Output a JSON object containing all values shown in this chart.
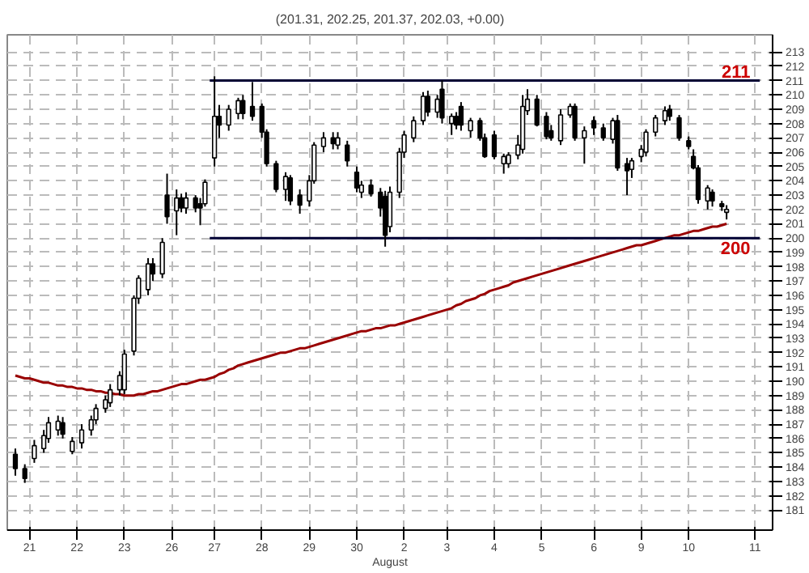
{
  "chart_data": {
    "type": "candlestick",
    "title": "(201.31, 202.25, 201.37, 202.03, +0.00)",
    "xlabel": "August",
    "categories": [
      null,
      null,
      null,
      "21",
      null,
      null,
      null,
      null,
      null,
      null,
      null,
      null,
      null,
      "22",
      null,
      null,
      null,
      null,
      null,
      null,
      null,
      null,
      null,
      "23",
      null,
      null,
      null,
      null,
      null,
      null,
      null,
      null,
      null,
      "26",
      null,
      null,
      null,
      null,
      null,
      null,
      null,
      null,
      "27",
      null,
      null,
      null,
      null,
      null,
      null,
      null,
      null,
      null,
      "28",
      null,
      null,
      null,
      null,
      null,
      null,
      null,
      null,
      null,
      "29",
      null,
      null,
      null,
      null,
      null,
      null,
      null,
      null,
      null,
      "30",
      null,
      null,
      null,
      null,
      null,
      null,
      null,
      null,
      null,
      "2",
      null,
      null,
      null,
      null,
      null,
      null,
      null,
      null,
      "3",
      null,
      null,
      null,
      null,
      null,
      null,
      null,
      null,
      null,
      "4",
      null,
      null,
      null,
      null,
      null,
      null,
      null,
      null,
      null,
      "5",
      null,
      null,
      null,
      null,
      null,
      null,
      null,
      null,
      null,
      null,
      "6",
      null,
      null,
      null,
      null,
      null,
      null,
      null,
      null,
      null,
      "9",
      null,
      null,
      null,
      null,
      null,
      null,
      null,
      null,
      null,
      "10",
      null,
      null,
      null,
      null,
      null,
      null,
      null,
      null,
      null,
      null,
      null,
      null,
      null,
      "11",
      null
    ],
    "ohlc": [
      [
        184.9,
        185.3,
        183.4,
        183.9
      ],
      null,
      [
        183.9,
        184.2,
        182.9,
        183.2
      ],
      null,
      [
        184.6,
        185.9,
        184.3,
        185.5
      ],
      null,
      [
        185.3,
        186.6,
        185.0,
        186.2
      ],
      [
        186.0,
        187.5,
        185.7,
        187.1
      ],
      null,
      [
        186.6,
        187.6,
        186.2,
        187.2
      ],
      [
        187.1,
        187.5,
        186.0,
        186.3
      ],
      null,
      [
        185.1,
        186.1,
        184.9,
        185.8
      ],
      null,
      [
        185.7,
        187.0,
        185.3,
        186.6
      ],
      null,
      [
        186.6,
        187.6,
        186.2,
        187.3
      ],
      [
        187.3,
        188.4,
        187.0,
        188.1
      ],
      null,
      [
        188.1,
        189.0,
        187.8,
        188.7
      ],
      [
        188.5,
        189.8,
        188.2,
        189.4
      ],
      null,
      [
        189.4,
        190.7,
        189.0,
        190.4
      ],
      [
        189.4,
        192.2,
        189.1,
        191.9
      ],
      null,
      [
        192.1,
        196.0,
        191.8,
        195.8
      ],
      [
        195.8,
        197.4,
        195.4,
        197.2
      ],
      null,
      [
        196.4,
        198.6,
        196.0,
        198.2
      ],
      [
        198.2,
        198.6,
        197.0,
        197.5
      ],
      null,
      [
        197.5,
        200.0,
        197.2,
        199.7
      ],
      [
        203.0,
        204.5,
        201.0,
        201.5
      ],
      null,
      [
        201.9,
        203.4,
        200.2,
        202.8
      ],
      [
        202.8,
        203.1,
        201.8,
        202.1
      ],
      [
        202.1,
        203.2,
        201.7,
        202.8
      ],
      null,
      [
        202.8,
        203.0,
        201.8,
        202.1
      ],
      [
        202.4,
        202.8,
        200.9,
        202.1
      ],
      [
        202.4,
        204.1,
        202.2,
        203.9
      ],
      null,
      [
        205.6,
        211.3,
        205.0,
        208.5
      ],
      [
        208.5,
        209.3,
        207.0,
        207.9
      ],
      null,
      [
        207.9,
        209.3,
        207.5,
        209.0
      ],
      null,
      [
        208.7,
        209.8,
        208.3,
        209.6
      ],
      [
        209.6,
        210.0,
        208.3,
        208.7
      ],
      null,
      [
        209.2,
        210.9,
        208.2,
        208.5
      ],
      null,
      [
        209.2,
        209.4,
        207.0,
        207.4
      ],
      [
        207.4,
        207.6,
        205.0,
        205.2
      ],
      null,
      [
        205.2,
        205.4,
        203.2,
        203.4
      ],
      null,
      [
        203.4,
        204.6,
        202.6,
        204.3
      ],
      [
        204.2,
        204.4,
        202.3,
        202.6
      ],
      null,
      [
        203.0,
        203.4,
        201.7,
        202.3
      ],
      null,
      [
        202.6,
        204.4,
        202.2,
        204.0
      ],
      [
        204.0,
        206.7,
        203.8,
        206.5
      ],
      null,
      [
        206.4,
        207.4,
        206.0,
        207.0
      ],
      null,
      [
        207.0,
        207.4,
        206.2,
        206.6
      ],
      [
        206.5,
        207.4,
        206.2,
        207.0
      ],
      null,
      [
        206.5,
        206.8,
        205.0,
        205.4
      ],
      null,
      [
        204.6,
        205.0,
        203.2,
        203.5
      ],
      [
        203.2,
        204.0,
        202.8,
        203.7
      ],
      null,
      [
        203.7,
        204.1,
        202.9,
        203.1
      ],
      null,
      [
        203.2,
        203.5,
        201.5,
        202.1
      ],
      [
        202.9,
        203.3,
        199.4,
        200.2
      ],
      [
        200.8,
        203.6,
        200.4,
        203.2
      ],
      null,
      [
        203.2,
        206.3,
        202.8,
        206.0
      ],
      [
        206.0,
        207.5,
        205.6,
        207.2
      ],
      null,
      [
        207.0,
        208.5,
        206.7,
        208.2
      ],
      null,
      [
        208.2,
        210.2,
        207.9,
        209.9
      ],
      [
        209.9,
        210.3,
        208.5,
        208.8
      ],
      null,
      [
        208.8,
        210.0,
        208.4,
        209.7
      ],
      [
        210.4,
        211.0,
        208.0,
        208.4
      ],
      null,
      [
        208.0,
        208.7,
        207.2,
        208.5
      ],
      [
        208.5,
        208.8,
        207.6,
        207.9
      ],
      [
        209.2,
        209.5,
        207.5,
        207.9
      ],
      null,
      [
        207.5,
        208.4,
        207.0,
        208.2
      ],
      null,
      [
        208.2,
        208.4,
        206.8,
        207.0
      ],
      [
        207.0,
        207.3,
        205.6,
        205.7
      ],
      null,
      [
        207.2,
        207.5,
        205.5,
        205.7
      ],
      null,
      [
        205.2,
        205.9,
        204.5,
        205.7
      ],
      [
        205.2,
        206.0,
        204.9,
        205.8
      ],
      null,
      [
        205.8,
        207.2,
        205.5,
        206.5
      ],
      [
        206.2,
        210.0,
        205.9,
        209.2
      ],
      [
        208.9,
        210.4,
        208.6,
        209.7
      ],
      null,
      [
        209.7,
        210.0,
        207.8,
        207.9
      ],
      null,
      [
        208.5,
        208.8,
        206.9,
        207.1
      ],
      [
        207.5,
        207.9,
        206.8,
        207.0
      ],
      null,
      [
        206.8,
        209.0,
        206.5,
        208.6
      ],
      null,
      [
        208.6,
        209.4,
        208.4,
        209.2
      ],
      [
        209.2,
        209.4,
        206.8,
        207.0
      ],
      null,
      [
        207.0,
        207.8,
        205.2,
        207.5
      ],
      null,
      [
        208.2,
        208.5,
        207.2,
        207.7
      ],
      null,
      [
        207.7,
        208.0,
        206.8,
        207.0
      ],
      null,
      [
        206.9,
        208.4,
        206.6,
        208.2
      ],
      [
        208.2,
        208.6,
        204.7,
        204.9
      ],
      null,
      [
        205.2,
        205.6,
        203.0,
        204.7
      ],
      [
        204.8,
        205.6,
        204.2,
        205.4
      ],
      null,
      [
        205.7,
        206.5,
        205.3,
        206.2
      ],
      [
        206.0,
        207.6,
        205.7,
        207.4
      ],
      null,
      [
        207.4,
        208.6,
        207.1,
        208.4
      ],
      null,
      [
        208.2,
        209.2,
        207.9,
        208.9
      ],
      [
        209.0,
        209.3,
        208.2,
        208.5
      ],
      null,
      [
        208.4,
        208.6,
        206.8,
        207.0
      ],
      null,
      [
        206.8,
        207.1,
        206.2,
        206.4
      ],
      [
        205.7,
        206.2,
        204.8,
        204.9
      ],
      [
        204.9,
        205.1,
        202.4,
        202.7
      ],
      null,
      [
        202.6,
        203.7,
        202.0,
        203.5
      ],
      [
        203.2,
        203.4,
        202.2,
        202.6
      ],
      null,
      [
        202.4,
        202.6,
        201.9,
        202.2
      ],
      [
        201.8,
        202.3,
        201.3,
        202.0
      ],
      null,
      null,
      null,
      null,
      null,
      null,
      null
    ],
    "series": [
      {
        "type": "line",
        "color": "#990000",
        "values": [
          190.4,
          190.3,
          190.2,
          190.2,
          190.1,
          190.0,
          189.9,
          189.9,
          189.8,
          189.7,
          189.7,
          189.6,
          189.6,
          189.5,
          189.5,
          189.4,
          189.4,
          189.3,
          189.3,
          189.2,
          189.2,
          189.1,
          189.1,
          189.0,
          189.0,
          189.0,
          189.1,
          189.1,
          189.2,
          189.3,
          189.3,
          189.4,
          189.5,
          189.6,
          189.7,
          189.8,
          189.8,
          189.9,
          190.0,
          190.1,
          190.1,
          190.2,
          190.3,
          190.5,
          190.6,
          190.8,
          190.9,
          191.1,
          191.2,
          191.3,
          191.4,
          191.5,
          191.6,
          191.7,
          191.8,
          191.9,
          192.0,
          192.0,
          192.1,
          192.2,
          192.3,
          192.3,
          192.4,
          192.5,
          192.6,
          192.7,
          192.8,
          192.9,
          193.0,
          193.1,
          193.2,
          193.3,
          193.4,
          193.5,
          193.5,
          193.6,
          193.7,
          193.7,
          193.8,
          193.9,
          193.9,
          194.0,
          194.1,
          194.2,
          194.3,
          194.4,
          194.5,
          194.6,
          194.7,
          194.8,
          194.9,
          195.0,
          195.1,
          195.3,
          195.4,
          195.6,
          195.7,
          195.8,
          196.0,
          196.1,
          196.3,
          196.4,
          196.5,
          196.6,
          196.7,
          196.9,
          197.0,
          197.1,
          197.2,
          197.3,
          197.4,
          197.5,
          197.6,
          197.7,
          197.8,
          197.9,
          198.0,
          198.1,
          198.2,
          198.3,
          198.4,
          198.5,
          198.6,
          198.7,
          198.8,
          198.9,
          199.0,
          199.1,
          199.2,
          199.3,
          199.4,
          199.5,
          199.5,
          199.6,
          199.7,
          199.8,
          199.9,
          200.0,
          200.1,
          200.2,
          200.2,
          200.3,
          200.4,
          200.5,
          200.5,
          200.6,
          200.7,
          200.8,
          200.8,
          200.9,
          201.0,
          null,
          null,
          null,
          null,
          null,
          null,
          null
        ]
      },
      {
        "type": "line",
        "color": "#000033",
        "values": [
          null,
          null,
          null,
          null,
          null,
          null,
          null,
          null,
          null,
          null,
          null,
          null,
          null,
          null,
          null,
          null,
          null,
          null,
          null,
          null,
          null,
          null,
          null,
          null,
          null,
          null,
          null,
          null,
          null,
          null,
          null,
          null,
          null,
          null,
          null,
          null,
          null,
          null,
          null,
          null,
          null,
          211,
          211,
          211,
          211,
          211,
          211,
          211,
          211,
          211,
          211,
          211,
          211,
          211,
          211,
          211,
          211,
          211,
          211,
          211,
          211,
          211,
          211,
          211,
          211,
          211,
          211,
          211,
          211,
          211,
          211,
          211,
          211,
          211,
          211,
          211,
          211,
          211,
          211,
          211,
          211,
          211,
          211,
          211,
          211,
          211,
          211,
          211,
          211,
          211,
          211,
          211,
          211,
          211,
          211,
          211,
          211,
          211,
          211,
          211,
          211,
          211,
          211,
          211,
          211,
          211,
          211,
          211,
          211,
          211,
          211,
          211,
          211,
          211,
          211,
          211,
          211,
          211,
          211,
          211,
          211,
          211,
          211,
          211,
          211,
          211,
          211,
          211,
          211,
          211,
          211,
          211,
          211,
          211,
          211,
          211,
          211,
          211,
          211,
          211,
          211,
          211,
          211,
          211,
          211,
          211,
          211,
          211,
          211,
          211,
          211,
          211,
          211,
          211,
          211,
          211,
          211,
          211
        ]
      },
      {
        "type": "line",
        "color": "#000033",
        "values": [
          null,
          null,
          null,
          null,
          null,
          null,
          null,
          null,
          null,
          null,
          null,
          null,
          null,
          null,
          null,
          null,
          null,
          null,
          null,
          null,
          null,
          null,
          null,
          null,
          null,
          null,
          null,
          null,
          null,
          null,
          null,
          null,
          null,
          null,
          null,
          null,
          null,
          null,
          null,
          null,
          null,
          200,
          200,
          200,
          200,
          200,
          200,
          200,
          200,
          200,
          200,
          200,
          200,
          200,
          200,
          200,
          200,
          200,
          200,
          200,
          200,
          200,
          200,
          200,
          200,
          200,
          200,
          200,
          200,
          200,
          200,
          200,
          200,
          200,
          200,
          200,
          200,
          200,
          200,
          200,
          200,
          200,
          200,
          200,
          200,
          200,
          200,
          200,
          200,
          200,
          200,
          200,
          200,
          200,
          200,
          200,
          200,
          200,
          200,
          200,
          200,
          200,
          200,
          200,
          200,
          200,
          200,
          200,
          200,
          200,
          200,
          200,
          200,
          200,
          200,
          200,
          200,
          200,
          200,
          200,
          200,
          200,
          200,
          200,
          200,
          200,
          200,
          200,
          200,
          200,
          200,
          200,
          200,
          200,
          200,
          200,
          200,
          200,
          200,
          200,
          200,
          200,
          200,
          200,
          200,
          200,
          200,
          200,
          200,
          200,
          200,
          200,
          200,
          200,
          200,
          200,
          200,
          200
        ]
      }
    ],
    "annotations": [
      "211",
      "200"
    ],
    "ylim": [
      179.6,
      214.2
    ],
    "yticks": [
      181,
      182,
      183,
      184,
      185,
      186,
      187,
      188,
      189,
      190,
      191,
      192,
      193,
      194,
      195,
      196,
      197,
      198,
      199,
      200,
      201,
      202,
      203,
      204,
      205,
      206,
      207,
      208,
      209,
      210,
      211,
      212,
      213
    ],
    "grid": true
  }
}
